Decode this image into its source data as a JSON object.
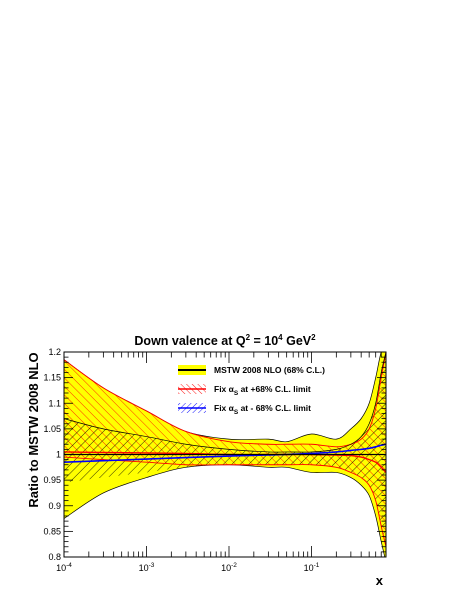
{
  "chart_data": {
    "type": "area",
    "title": {
      "main": "Down valence at Q",
      "sup1": "2",
      "mid": " = 10",
      "sup2": "4",
      "unit": " GeV",
      "sup3": "2"
    },
    "xlabel": "x",
    "ylabel": "Ratio to MSTW 2008 NLO",
    "x_scale": "log",
    "xlim": [
      0.0001,
      0.8
    ],
    "ylim": [
      0.8,
      1.2
    ],
    "grid": false,
    "legend_position": "top-right",
    "x_ticks": [
      {
        "value": 0.0001,
        "base": "10",
        "exp": "-4"
      },
      {
        "value": 0.001,
        "base": "10",
        "exp": "-3"
      },
      {
        "value": 0.01,
        "base": "10",
        "exp": "-2"
      },
      {
        "value": 0.1,
        "base": "10",
        "exp": "-1"
      }
    ],
    "y_ticks": [
      {
        "value": 0.8,
        "label": "0.8"
      },
      {
        "value": 0.85,
        "label": "0.85"
      },
      {
        "value": 0.9,
        "label": "0.9"
      },
      {
        "value": 0.95,
        "label": "0.95"
      },
      {
        "value": 1.0,
        "label": "1"
      },
      {
        "value": 1.05,
        "label": "1.05"
      },
      {
        "value": 1.1,
        "label": "1.1"
      },
      {
        "value": 1.15,
        "label": "1.15"
      },
      {
        "value": 1.2,
        "label": "1.2"
      }
    ],
    "series": [
      {
        "legend": {
          "text": "MSTW 2008 NLO (68% C.L.)"
        },
        "style": "yellow-band",
        "fill": "#ffff00",
        "line": "#000000",
        "x": [
          0.0001,
          0.0003,
          0.001,
          0.003,
          0.01,
          0.03,
          0.05,
          0.1,
          0.2,
          0.3,
          0.4,
          0.5,
          0.6,
          0.7,
          0.8
        ],
        "upper": [
          1.185,
          1.13,
          1.085,
          1.045,
          1.03,
          1.03,
          1.025,
          1.04,
          1.03,
          1.05,
          1.07,
          1.1,
          1.15,
          1.2,
          1.21
        ],
        "central": [
          1.0,
          1.0,
          1.0,
          1.0,
          1.0,
          1.0,
          1.0,
          1.0,
          1.0,
          1.0,
          1.0,
          1.0,
          1.0,
          1.0,
          1.0
        ],
        "lower": [
          0.875,
          0.925,
          0.955,
          0.975,
          0.98,
          0.975,
          0.975,
          0.965,
          0.965,
          0.955,
          0.94,
          0.92,
          0.88,
          0.83,
          0.79
        ]
      },
      {
        "legend": {
          "pre": "Fix α",
          "sub": "S",
          "post": " at +68% C.L. limit"
        },
        "style": "red-hatch",
        "line": "#ff0000",
        "x": [
          0.0001,
          0.0003,
          0.001,
          0.003,
          0.01,
          0.03,
          0.05,
          0.1,
          0.2,
          0.3,
          0.4,
          0.5,
          0.6,
          0.7,
          0.8
        ],
        "upper": [
          1.185,
          1.13,
          1.085,
          1.045,
          1.025,
          1.02,
          1.02,
          1.02,
          1.015,
          1.02,
          1.03,
          1.05,
          1.09,
          1.15,
          1.2
        ],
        "central": [
          1.005,
          1.004,
          1.003,
          1.002,
          1.0,
          1.0,
          1.0,
          1.0,
          0.999,
          0.998,
          0.995,
          0.99,
          0.985,
          0.975,
          0.965
        ],
        "lower": [
          0.995,
          0.99,
          0.985,
          0.98,
          0.98,
          0.98,
          0.98,
          0.98,
          0.975,
          0.965,
          0.955,
          0.94,
          0.91,
          0.86,
          0.82
        ]
      },
      {
        "legend": {
          "pre": "Fix α",
          "sub": "S",
          "post": " at - 68% C.L. limit"
        },
        "style": "blue-hatch",
        "line": "#0000ff",
        "x": [
          0.0001,
          0.0003,
          0.001,
          0.003,
          0.01,
          0.03,
          0.05,
          0.1,
          0.2,
          0.3,
          0.4,
          0.5,
          0.6,
          0.7,
          0.8
        ],
        "upper": [
          1.07,
          1.05,
          1.035,
          1.02,
          1.01,
          1.005,
          1.005,
          1.005,
          1.01,
          1.02,
          1.035,
          1.06,
          1.1,
          1.16,
          1.2
        ],
        "central": [
          0.985,
          0.988,
          0.991,
          0.994,
          0.997,
          0.999,
          1.0,
          1.002,
          1.005,
          1.008,
          1.01,
          1.012,
          1.015,
          1.018,
          1.02
        ],
        "lower": [
          0.945,
          0.955,
          0.965,
          0.975,
          0.98,
          0.98,
          0.98,
          0.98,
          0.975,
          0.965,
          0.955,
          0.94,
          0.91,
          0.86,
          0.82
        ]
      }
    ]
  }
}
